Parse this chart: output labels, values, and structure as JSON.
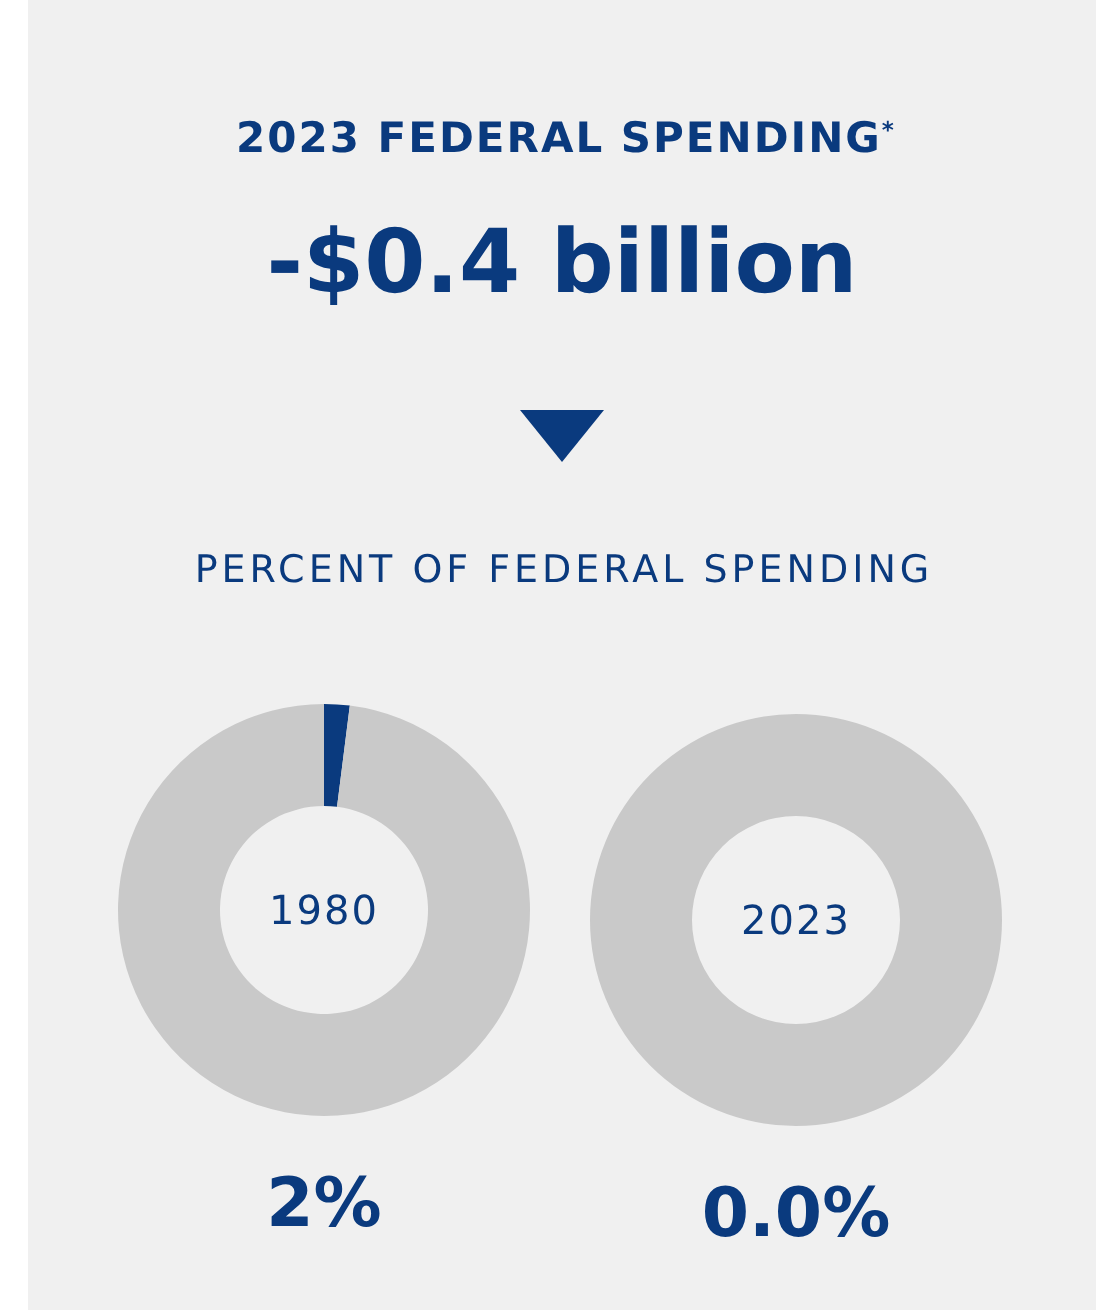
{
  "chart_data": [
    {
      "type": "other",
      "title": "2023 FEDERAL SPENDING$^{*}$",
      "annotations": [
        "-$0.4 billion",
        "PERCENT OF FEDERAL SPENDING"
      ]
    },
    {
      "type": "donut",
      "title": "1980",
      "categories": [
        null,
        null
      ],
      "values": [
        2,
        98
      ],
      "colors": [
        "#0a3a7e",
        "#c9c9c9"
      ],
      "annotations": [
        "2%"
      ]
    },
    {
      "type": "donut",
      "title": "2023",
      "categories": [
        null,
        null
      ],
      "values": [
        0.0,
        100
      ],
      "colors": [
        "#0a3a7e",
        "#c9c9c9"
      ],
      "annotations": [
        "0.0%"
      ]
    }
  ]
}
